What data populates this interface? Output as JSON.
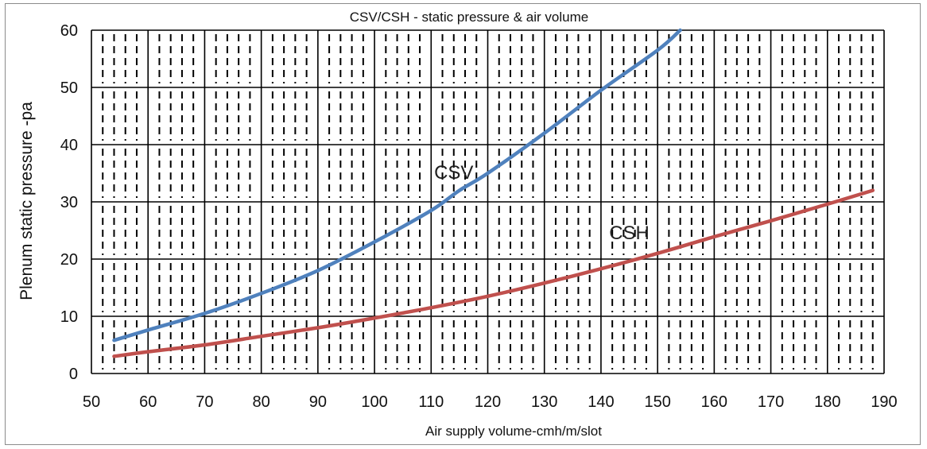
{
  "chart_data": {
    "type": "line",
    "title": "CSV/CSH - static pressure  & air volume",
    "xlabel": "Air supply volume-cmh/m/slot",
    "ylabel": "Plenum static pressure -pa",
    "xlim": [
      50,
      190
    ],
    "ylim": [
      0,
      60
    ],
    "xticks": [
      50,
      60,
      70,
      80,
      90,
      100,
      110,
      120,
      130,
      140,
      150,
      160,
      170,
      180,
      190
    ],
    "yticks": [
      0,
      10,
      20,
      30,
      40,
      50,
      60
    ],
    "grid": "major solid, minor dashed vertical",
    "series": [
      {
        "name": "CSV",
        "color": "#4f81bd",
        "x": [
          54,
          60,
          70,
          80,
          90,
          100,
          110,
          115,
          120,
          130,
          140,
          150,
          154
        ],
        "y": [
          5.8,
          7.6,
          10.5,
          14,
          18,
          23,
          28.5,
          32,
          35,
          42,
          49.5,
          56.5,
          60
        ]
      },
      {
        "name": "CSH",
        "color": "#c0504d",
        "x": [
          54,
          60,
          70,
          80,
          90,
          100,
          110,
          120,
          130,
          140,
          150,
          160,
          170,
          180,
          188
        ],
        "y": [
          3,
          3.8,
          5,
          6.5,
          8,
          9.7,
          11.5,
          13.5,
          15.8,
          18.3,
          21,
          23.9,
          26.7,
          29.6,
          32
        ]
      }
    ],
    "annotations": [
      {
        "text": "CSV",
        "x": 114,
        "y": 34
      },
      {
        "text": "CSH",
        "x": 145,
        "y": 23.5
      }
    ]
  }
}
